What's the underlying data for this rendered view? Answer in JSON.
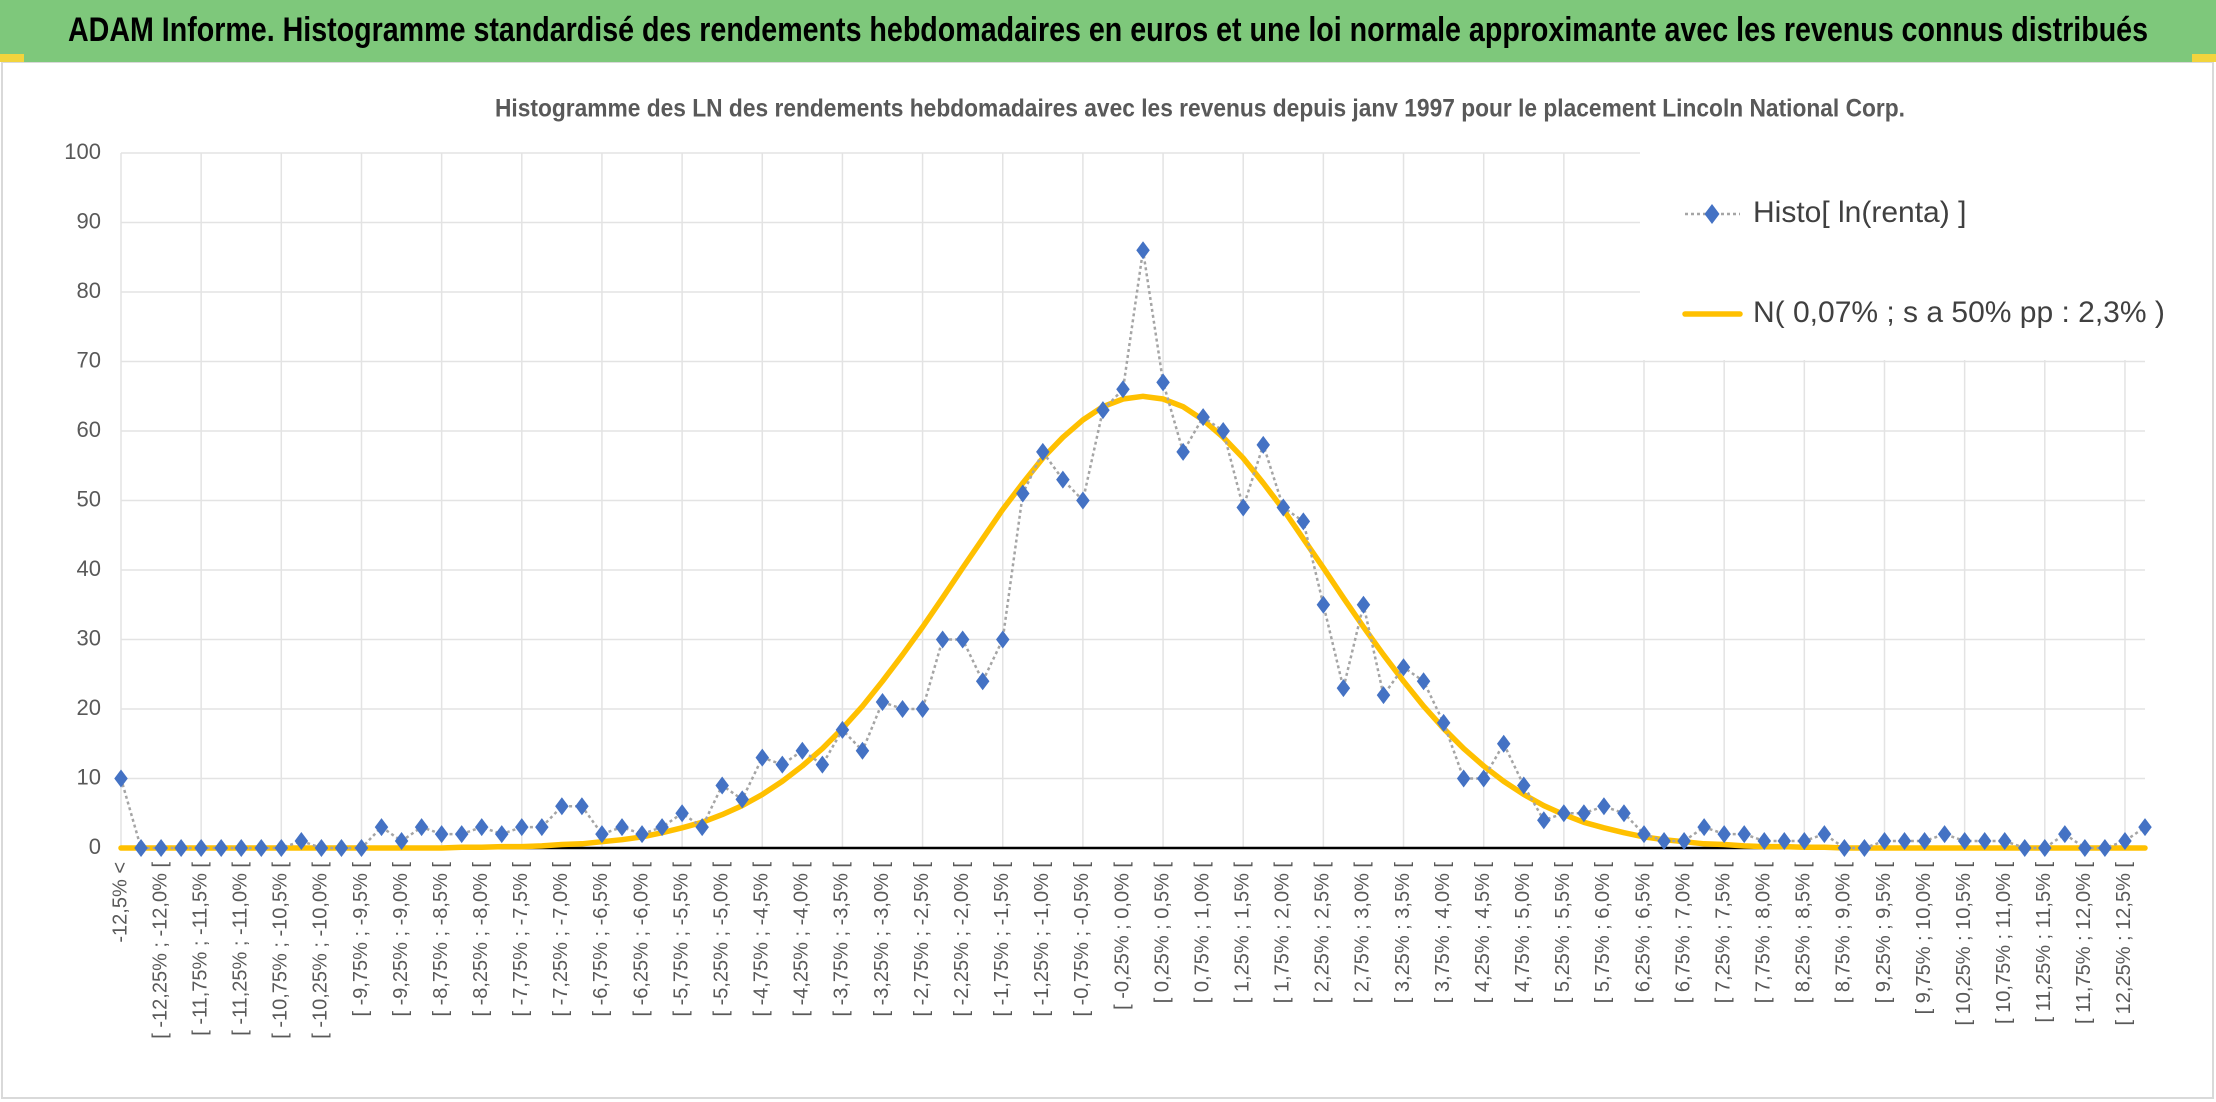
{
  "header": {
    "title": "ADAM Informe. Histogramme standardisé des rendements hebdomadaires en euros et une loi normale approximante avec les revenus connus distribués"
  },
  "chart_data": {
    "type": "line",
    "title": "Histogramme des LN des rendements hebdomadaires avec les revenus depuis janv 1997 pour le placement Lincoln National Corp.",
    "categories": [
      "-12,5% <",
      null,
      "[ -12,25% ; -12,0% [",
      null,
      "[ -11,75% ; -11,5% [",
      null,
      "[ -11,25% ; -11,0% [",
      null,
      "[ -10,75% ; -10,5% [",
      null,
      "[ -10,25% ; -10,0% [",
      null,
      "[ -9,75% ; -9,5% [",
      null,
      "[ -9,25% ; -9,0% [",
      null,
      "[ -8,75% ; -8,5% [",
      null,
      "[ -8,25% ; -8,0% [",
      null,
      "[ -7,75% ; -7,5% [",
      null,
      "[ -7,25% ; -7,0% [",
      null,
      "[ -6,75% ; -6,5% [",
      null,
      "[ -6,25% ; -6,0% [",
      null,
      "[ -5,75% ; -5,5% [",
      null,
      "[ -5,25% ; -5,0% [",
      null,
      "[ -4,75% ; -4,5% [",
      null,
      "[ -4,25% ; -4,0% [",
      null,
      "[ -3,75% ; -3,5% [",
      null,
      "[ -3,25% ; -3,0% [",
      null,
      "[ -2,75% ; -2,5% [",
      null,
      "[ -2,25% ; -2,0% [",
      null,
      "[ -1,75% ; -1,5% [",
      null,
      "[ -1,25% ; -1,0% [",
      null,
      "[ -0,75% ; -0,5% [",
      null,
      "[ -0,25% ; 0,0% [",
      null,
      "[ 0,25% ; 0,5% [",
      null,
      "[ 0,75% ; 1,0% [",
      null,
      "[ 1,25% ; 1,5% [",
      null,
      "[ 1,75% ; 2,0% [",
      null,
      "[ 2,25% ; 2,5% [",
      null,
      "[ 2,75% ; 3,0% [",
      null,
      "[ 3,25% ; 3,5% [",
      null,
      "[ 3,75% ; 4,0% [",
      null,
      "[ 4,25% ; 4,5% [",
      null,
      "[ 4,75% ; 5,0% [",
      null,
      "[ 5,25% ; 5,5% [",
      null,
      "[ 5,75% ; 6,0% [",
      null,
      "[ 6,25% ; 6,5% [",
      null,
      "[ 6,75% ; 7,0% [",
      null,
      "[ 7,25% ; 7,5% [",
      null,
      "[ 7,75% ; 8,0% [",
      null,
      "[ 8,25% ; 8,5% [",
      null,
      "[ 8,75% ; 9,0% [",
      null,
      "[ 9,25% ; 9,5% [",
      null,
      "[ 9,75% ; 10,0% [",
      null,
      "[ 10,25% ; 10,5% [",
      null,
      "[ 10,75% ; 11,0% [",
      null,
      "[ 11,25% ; 11,5% [",
      null,
      "[ 11,75% ; 12,0% [",
      null,
      "[ 12,25% ; 12,5% [",
      null
    ],
    "series": [
      {
        "name": "Histo[ ln(renta) ]",
        "color": "#4472c4",
        "line_color": "#a5a5a5",
        "values": [
          10,
          0,
          0,
          0,
          0,
          0,
          0,
          0,
          0,
          1,
          0,
          0,
          0,
          3,
          1,
          3,
          2,
          2,
          3,
          2,
          3,
          3,
          6,
          6,
          2,
          3,
          2,
          3,
          5,
          3,
          9,
          7,
          13,
          12,
          14,
          12,
          17,
          14,
          21,
          20,
          20,
          30,
          30,
          24,
          30,
          51,
          57,
          53,
          50,
          63,
          66,
          86,
          67,
          57,
          62,
          60,
          49,
          58,
          49,
          47,
          35,
          23,
          35,
          22,
          26,
          24,
          18,
          10,
          10,
          15,
          9,
          4,
          5,
          5,
          6,
          5,
          2,
          1,
          1,
          3,
          2,
          2,
          1,
          1,
          1,
          2,
          0,
          0,
          1,
          1,
          1,
          2,
          1,
          1,
          1,
          0,
          0,
          2,
          0,
          0,
          1,
          3
        ]
      },
      {
        "name": "N( 0,07% ; s a 50% pp : 2,3% )",
        "color": "#ffc000",
        "values": [
          0,
          0,
          0,
          0,
          0,
          0,
          0,
          0,
          0,
          0,
          0,
          0,
          0,
          0,
          0,
          0,
          0,
          0.1,
          0.1,
          0.2,
          0.2,
          0.3,
          0.5,
          0.6,
          0.9,
          1.2,
          1.6,
          2.2,
          2.9,
          3.7,
          4.8,
          6.1,
          7.7,
          9.6,
          11.8,
          14.3,
          17.2,
          20.4,
          24.0,
          27.8,
          31.8,
          36.0,
          40.3,
          44.5,
          48.7,
          52.5,
          56.1,
          59.1,
          61.6,
          63.5,
          64.6,
          65.0,
          64.6,
          63.5,
          61.6,
          59.1,
          56.1,
          52.5,
          48.7,
          44.5,
          40.3,
          36.0,
          31.8,
          27.8,
          24.0,
          20.4,
          17.2,
          14.3,
          11.8,
          9.6,
          7.7,
          6.1,
          4.8,
          3.7,
          2.9,
          2.2,
          1.6,
          1.2,
          0.9,
          0.6,
          0.5,
          0.3,
          0.2,
          0.2,
          0.1,
          0.1,
          0,
          0,
          0,
          0,
          0,
          0,
          0,
          0,
          0,
          0,
          0,
          0,
          0,
          0,
          0,
          0
        ]
      }
    ],
    "ylim": [
      0,
      100
    ],
    "yticks": [
      0,
      10,
      20,
      30,
      40,
      50,
      60,
      70,
      80,
      90,
      100
    ],
    "grid": true,
    "legend": "top-right"
  }
}
